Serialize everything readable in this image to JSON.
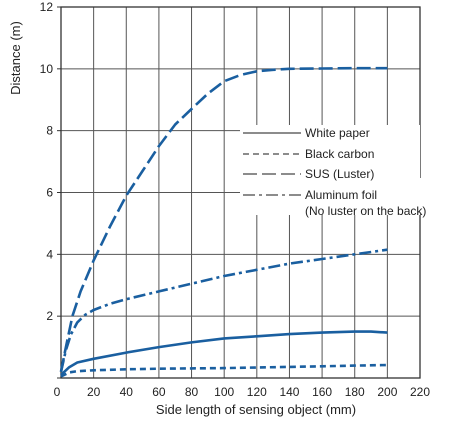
{
  "chart_data": {
    "type": "line",
    "xlabel": "Side length of sensing object (mm)",
    "ylabel": "Distance (m)",
    "xlim": [
      0,
      220
    ],
    "ylim": [
      0,
      12
    ],
    "x_ticks": [
      0,
      20,
      40,
      60,
      80,
      100,
      120,
      140,
      160,
      180,
      200,
      220
    ],
    "y_ticks": [
      0,
      2,
      4,
      6,
      8,
      10,
      12
    ],
    "grid": true,
    "legend_position": "right",
    "legend_frame": false,
    "series": [
      {
        "name": "White paper",
        "line_style": "solid",
        "color": "#1a5fa0",
        "x": [
          0,
          5,
          10,
          20,
          40,
          60,
          80,
          100,
          120,
          140,
          160,
          180,
          190,
          200
        ],
        "y": [
          0.1,
          0.35,
          0.5,
          0.62,
          0.82,
          1.0,
          1.15,
          1.28,
          1.35,
          1.42,
          1.47,
          1.5,
          1.5,
          1.47
        ]
      },
      {
        "name": "Black carbon",
        "line_style": "dashed",
        "color": "#1a5fa0",
        "x": [
          0,
          5,
          10,
          20,
          40,
          60,
          80,
          100,
          120,
          140,
          160,
          180,
          200
        ],
        "y": [
          0.05,
          0.18,
          0.22,
          0.25,
          0.28,
          0.3,
          0.31,
          0.32,
          0.34,
          0.36,
          0.38,
          0.4,
          0.42
        ]
      },
      {
        "name": "SUS (Luster)",
        "line_style": "long-dashed",
        "color": "#1a5fa0",
        "x": [
          0,
          3,
          7,
          12,
          20,
          30,
          40,
          50,
          60,
          70,
          80,
          90,
          100,
          110,
          120,
          130,
          140,
          160,
          180,
          200
        ],
        "y": [
          0.2,
          1.0,
          2.0,
          2.8,
          3.8,
          4.9,
          5.9,
          6.7,
          7.5,
          8.2,
          8.7,
          9.2,
          9.6,
          9.8,
          9.92,
          9.97,
          10.0,
          10.01,
          10.02,
          10.02
        ]
      },
      {
        "name": "Aluminum foil\n(No luster on the back)",
        "line_style": "dash-dot",
        "color": "#1a5fa0",
        "x": [
          0,
          3,
          6,
          10,
          15,
          20,
          30,
          40,
          60,
          80,
          100,
          120,
          140,
          160,
          180,
          200
        ],
        "y": [
          0.2,
          0.9,
          1.4,
          1.8,
          2.05,
          2.2,
          2.4,
          2.55,
          2.8,
          3.05,
          3.3,
          3.5,
          3.7,
          3.85,
          4.0,
          4.15
        ]
      }
    ]
  }
}
